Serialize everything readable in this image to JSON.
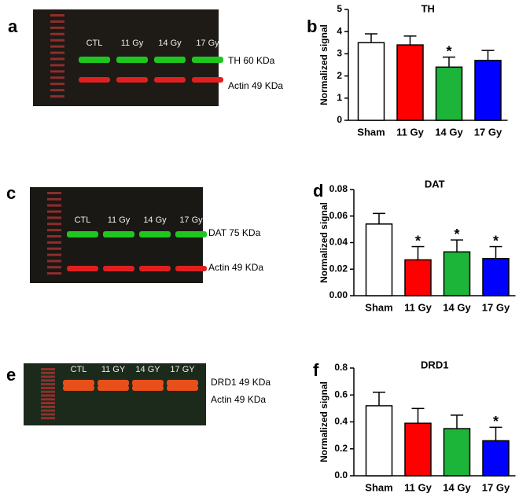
{
  "chart_data": [
    {
      "type": "bar",
      "panel": "b",
      "title": "TH",
      "ylabel": "Normalized signal",
      "categories": [
        "Sham",
        "11 Gy",
        "14 Gy",
        "17 Gy"
      ],
      "values": [
        3.5,
        3.4,
        2.4,
        2.7
      ],
      "errors": [
        0.4,
        0.4,
        0.45,
        0.45
      ],
      "colors": [
        "#ffffff",
        "#ff0000",
        "#1db43a",
        "#0000ff"
      ],
      "annotations": [
        {
          "category": "14 Gy",
          "text": "*"
        }
      ],
      "ylim": [
        0,
        5
      ],
      "yticks": [
        0,
        1,
        2,
        3,
        4,
        5
      ]
    },
    {
      "type": "bar",
      "panel": "d",
      "title": "DAT",
      "ylabel": "Normalized signal",
      "categories": [
        "Sham",
        "11 Gy",
        "14 Gy",
        "17 Gy"
      ],
      "values": [
        0.054,
        0.027,
        0.033,
        0.028
      ],
      "errors": [
        0.008,
        0.01,
        0.009,
        0.009
      ],
      "colors": [
        "#ffffff",
        "#ff0000",
        "#1db43a",
        "#0000ff"
      ],
      "annotations": [
        {
          "category": "11 Gy",
          "text": "*"
        },
        {
          "category": "14 Gy",
          "text": "*"
        },
        {
          "category": "17 Gy",
          "text": "*"
        }
      ],
      "ylim": [
        0,
        0.08
      ],
      "yticks": [
        {
          "value": 0,
          "label": "0.00"
        },
        {
          "value": 0.02,
          "label": "0.02"
        },
        {
          "value": 0.04,
          "label": "0.04"
        },
        {
          "value": 0.06,
          "label": "0.06"
        },
        {
          "value": 0.08,
          "label": "0.08"
        }
      ]
    },
    {
      "type": "bar",
      "panel": "f",
      "title": "DRD1",
      "ylabel": "Normalized signal",
      "categories": [
        "Sham",
        "11 Gy",
        "14 Gy",
        "17 Gy"
      ],
      "values": [
        0.52,
        0.39,
        0.35,
        0.26
      ],
      "errors": [
        0.1,
        0.11,
        0.1,
        0.1
      ],
      "colors": [
        "#ffffff",
        "#ff0000",
        "#1db43a",
        "#0000ff"
      ],
      "annotations": [
        {
          "category": "17 Gy",
          "text": "*"
        }
      ],
      "ylim": [
        0,
        0.8
      ],
      "yticks": [
        {
          "value": 0,
          "label": "0.0"
        },
        {
          "value": 0.2,
          "label": "0.2"
        },
        {
          "value": 0.4,
          "label": "0.4"
        },
        {
          "value": 0.6,
          "label": "0.6"
        },
        {
          "value": 0.8,
          "label": "0.8"
        }
      ]
    }
  ],
  "blots": [
    {
      "panel": "a",
      "lanes": [
        "CTL",
        "11 Gy",
        "14 Gy",
        "17 Gy"
      ],
      "bands": [
        "TH 60 KDa",
        "Actin 49 KDa"
      ]
    },
    {
      "panel": "c",
      "lanes": [
        "CTL",
        "11 Gy",
        "14 Gy",
        "17 Gy"
      ],
      "bands": [
        "DAT 75 KDa",
        "Actin 49 KDa"
      ]
    },
    {
      "panel": "e",
      "lanes": [
        "CTL",
        "11 GY",
        "14 GY",
        "17 GY"
      ],
      "bands": [
        "DRD1 49 KDa",
        "Actin 49 KDa"
      ]
    }
  ]
}
